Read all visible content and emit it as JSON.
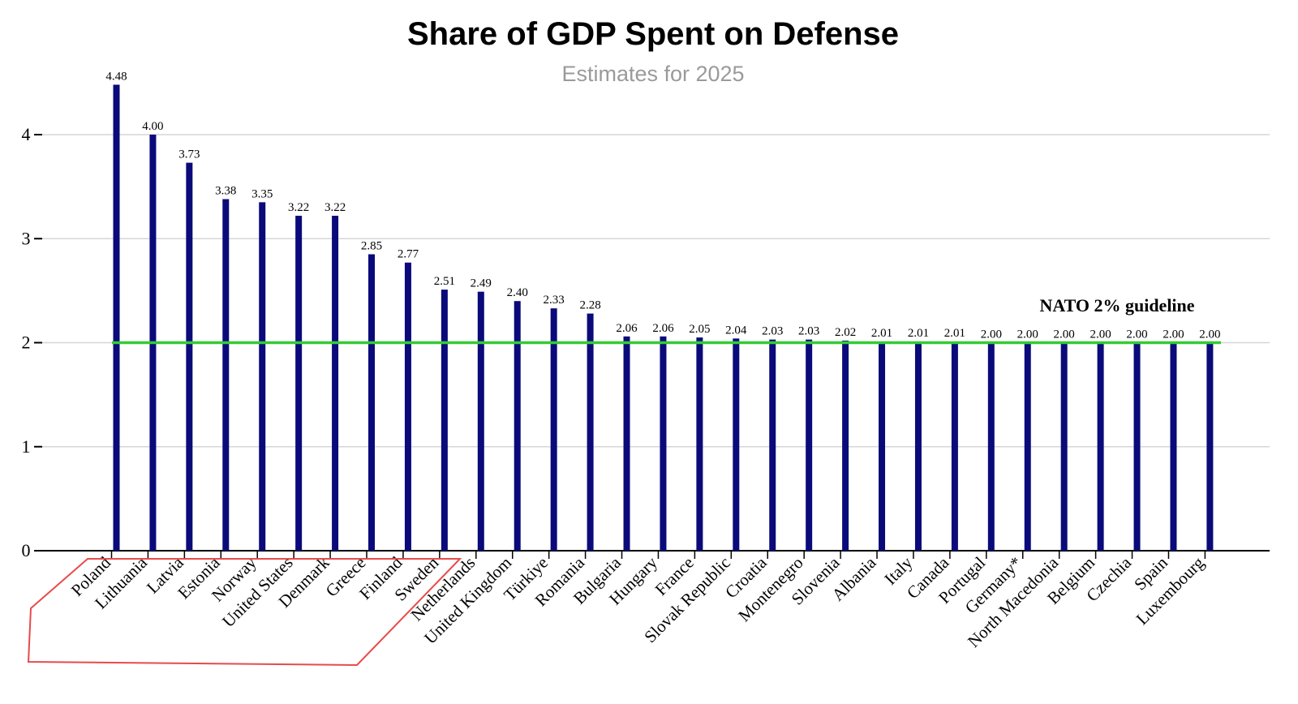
{
  "chart_data": {
    "type": "bar",
    "title": "Share of GDP Spent on Defense",
    "subtitle": "Estimates for 2025",
    "xlabel": "",
    "ylabel": "",
    "ylim": [
      0,
      4.6
    ],
    "yticks": [
      "0",
      "1",
      "2",
      "3",
      "4"
    ],
    "grid": true,
    "categories": [
      "Poland",
      "Lithuania",
      "Latvia",
      "Estonia",
      "Norway",
      "United States",
      "Denmark",
      "Greece",
      "Finland",
      "Sweden",
      "Netherlands",
      "United Kingdom",
      "Türkiye",
      "Romania",
      "Bulgaria",
      "Hungary",
      "France",
      "Slovak Republic",
      "Croatia",
      "Montenegro",
      "Slovenia",
      "Albania",
      "Italy",
      "Canada",
      "Portugal",
      "Germany*",
      "North Macedonia",
      "Belgium",
      "Czechia",
      "Spain",
      "Luxembourg"
    ],
    "values": [
      4.48,
      4.0,
      3.73,
      3.38,
      3.35,
      3.22,
      3.22,
      2.85,
      2.77,
      2.51,
      2.49,
      2.4,
      2.33,
      2.28,
      2.06,
      2.06,
      2.05,
      2.04,
      2.03,
      2.03,
      2.02,
      2.01,
      2.01,
      2.01,
      2.0,
      2.0,
      2.0,
      2.0,
      2.0,
      2.0,
      2.0
    ],
    "labels": [
      "4.48",
      "4.00",
      "3.73",
      "3.38",
      "3.35",
      "3.22",
      "3.22",
      "2.85",
      "2.77",
      "2.51",
      "2.49",
      "2.40",
      "2.33",
      "2.28",
      "2.06",
      "2.06",
      "2.05",
      "2.04",
      "2.03",
      "2.03",
      "2.02",
      "2.01",
      "2.01",
      "2.01",
      "2.00",
      "2.00",
      "2.00",
      "2.00",
      "2.00",
      "2.00",
      "2.00"
    ],
    "reference_line": {
      "value": 2,
      "label": "NATO 2% guideline",
      "color": "#33cc33"
    },
    "bar_color": "#0a0a7a",
    "highlight": {
      "categories": [
        "Poland",
        "Lithuania",
        "Latvia",
        "Estonia",
        "Norway",
        "United States",
        "Denmark",
        "Greece",
        "Finland",
        "Sweden"
      ],
      "color": "#e84a4a"
    }
  }
}
